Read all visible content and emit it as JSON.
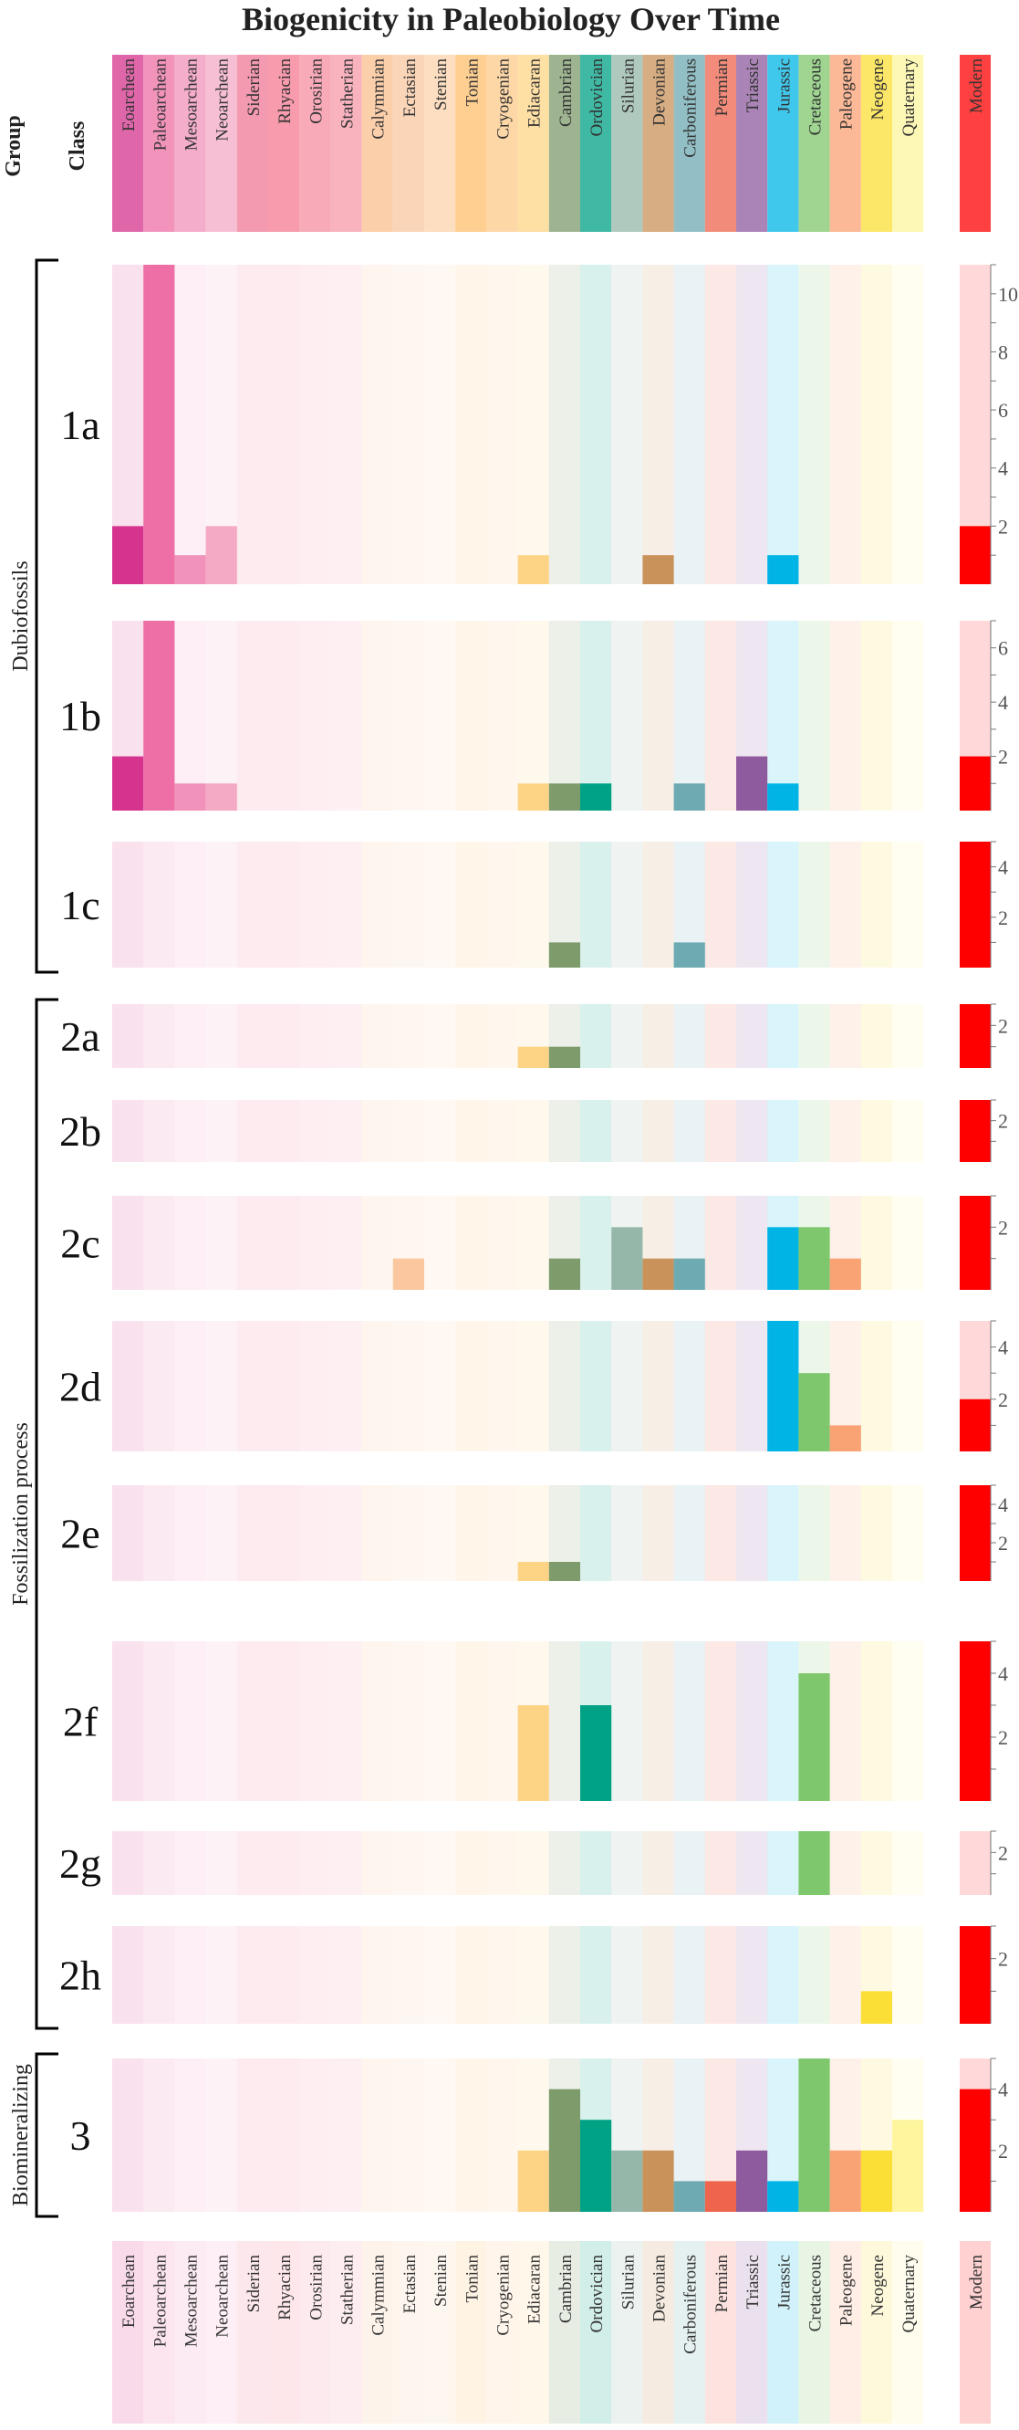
{
  "chart_data": {
    "type": "bar",
    "title": "Biogenicity in Paleobiology Over Time",
    "column_headers": {
      "group": "Group",
      "class": "Class"
    },
    "periods": [
      "Eoarchean",
      "Paleoarchean",
      "Mesoarchean",
      "Neoarchean",
      "Siderian",
      "Rhyacian",
      "Orosirian",
      "Statherian",
      "Calymmian",
      "Ectasian",
      "Stenian",
      "Tonian",
      "Cryogenian",
      "Ediacaran",
      "Cambrian",
      "Ordovician",
      "Silurian",
      "Devonian",
      "Carboniferous",
      "Permian",
      "Triassic",
      "Jurassic",
      "Cretaceous",
      "Paleogene",
      "Neogene",
      "Quaternary",
      "Modern"
    ],
    "colors": [
      "#D6338E",
      "#EE6FA6",
      "#F092B9",
      "#F4A9C5",
      "#F07896",
      "#F47A91",
      "#F58DA0",
      "#F599AA",
      "#FBBF8F",
      "#FAC79F",
      "#FCD3AC",
      "#FDBF6C",
      "#FDC98A",
      "#FDD486",
      "#7E9B6C",
      "#00A286",
      "#95B7A9",
      "#C9925A",
      "#6DAAB2",
      "#EE644D",
      "#8E5B9E",
      "#00B5E6",
      "#7FC76C",
      "#F9A274",
      "#FBDF36",
      "#FEF59E",
      "#FF0000"
    ],
    "groups": [
      {
        "name": "Dubiofossils",
        "classes": [
          "1a",
          "1b",
          "1c"
        ]
      },
      {
        "name": "Fossilization process",
        "classes": [
          "2a",
          "2b",
          "2c",
          "2d",
          "2e",
          "2f",
          "2g",
          "2h"
        ]
      },
      {
        "name": "Biomineralizing",
        "classes": [
          "3"
        ]
      }
    ],
    "series": [
      {
        "name": "1a",
        "ymax": 11,
        "ticks": [
          2,
          4,
          6,
          8,
          10
        ],
        "values": [
          2,
          11,
          1,
          2,
          0,
          0,
          0,
          0,
          0,
          0,
          0,
          0,
          0,
          1,
          0,
          0,
          0,
          1,
          0,
          0,
          0,
          1,
          0,
          0,
          0,
          0,
          2
        ]
      },
      {
        "name": "1b",
        "ymax": 7,
        "ticks": [
          2,
          4,
          6
        ],
        "values": [
          2,
          7,
          1,
          1,
          0,
          0,
          0,
          0,
          0,
          0,
          0,
          0,
          0,
          1,
          1,
          1,
          0,
          0,
          1,
          0,
          2,
          1,
          0,
          0,
          0,
          0,
          2
        ]
      },
      {
        "name": "1c",
        "ymax": 5,
        "ticks": [
          2,
          4
        ],
        "values": [
          0,
          0,
          0,
          0,
          0,
          0,
          0,
          0,
          0,
          0,
          0,
          0,
          0,
          0,
          1,
          0,
          0,
          0,
          1,
          0,
          0,
          0,
          0,
          0,
          0,
          0,
          5
        ]
      },
      {
        "name": "2a",
        "ymax": 3,
        "ticks": [
          2
        ],
        "values": [
          0,
          0,
          0,
          0,
          0,
          0,
          0,
          0,
          0,
          0,
          0,
          0,
          0,
          1,
          1,
          0,
          0,
          0,
          0,
          0,
          0,
          0,
          0,
          0,
          0,
          0,
          3
        ]
      },
      {
        "name": "2b",
        "ymax": 3,
        "ticks": [
          2
        ],
        "values": [
          0,
          0,
          0,
          0,
          0,
          0,
          0,
          0,
          0,
          0,
          0,
          0,
          0,
          0,
          0,
          0,
          0,
          0,
          0,
          0,
          0,
          0,
          0,
          0,
          0,
          0,
          3
        ]
      },
      {
        "name": "2c",
        "ymax": 3,
        "ticks": [
          2
        ],
        "values": [
          0,
          0,
          0,
          0,
          0,
          0,
          0,
          0,
          0,
          1,
          0,
          0,
          0,
          0,
          1,
          0,
          2,
          1,
          1,
          0,
          0,
          2,
          2,
          1,
          0,
          0,
          3
        ]
      },
      {
        "name": "2d",
        "ymax": 5,
        "ticks": [
          2,
          4
        ],
        "values": [
          0,
          0,
          0,
          0,
          0,
          0,
          0,
          0,
          0,
          0,
          0,
          0,
          0,
          0,
          0,
          0,
          0,
          0,
          0,
          0,
          0,
          5,
          3,
          1,
          0,
          0,
          2
        ]
      },
      {
        "name": "2e",
        "ymax": 5,
        "ticks": [
          2,
          4
        ],
        "values": [
          0,
          0,
          0,
          0,
          0,
          0,
          0,
          0,
          0,
          0,
          0,
          0,
          0,
          1,
          1,
          0,
          0,
          0,
          0,
          0,
          0,
          0,
          0,
          0,
          0,
          0,
          5
        ]
      },
      {
        "name": "2f",
        "ymax": 5,
        "ticks": [
          2,
          4
        ],
        "values": [
          0,
          0,
          0,
          0,
          0,
          0,
          0,
          0,
          0,
          0,
          0,
          0,
          0,
          3,
          0,
          3,
          0,
          0,
          0,
          0,
          0,
          0,
          4,
          0,
          0,
          0,
          5
        ]
      },
      {
        "name": "2g",
        "ymax": 3,
        "ticks": [
          2
        ],
        "values": [
          0,
          0,
          0,
          0,
          0,
          0,
          0,
          0,
          0,
          0,
          0,
          0,
          0,
          0,
          0,
          0,
          0,
          0,
          0,
          0,
          0,
          0,
          3,
          0,
          0,
          0,
          0
        ]
      },
      {
        "name": "2h",
        "ymax": 3,
        "ticks": [
          2
        ],
        "values": [
          0,
          0,
          0,
          0,
          0,
          0,
          0,
          0,
          0,
          0,
          0,
          0,
          0,
          0,
          0,
          0,
          0,
          0,
          0,
          0,
          0,
          0,
          0,
          0,
          1,
          0,
          3
        ]
      },
      {
        "name": "3",
        "ymax": 5,
        "ticks": [
          2,
          4
        ],
        "values": [
          0,
          0,
          0,
          0,
          0,
          0,
          0,
          0,
          0,
          0,
          0,
          0,
          0,
          2,
          4,
          3,
          2,
          2,
          1,
          1,
          2,
          1,
          5,
          2,
          2,
          3,
          4
        ]
      }
    ],
    "grid": false,
    "legend": "none"
  }
}
